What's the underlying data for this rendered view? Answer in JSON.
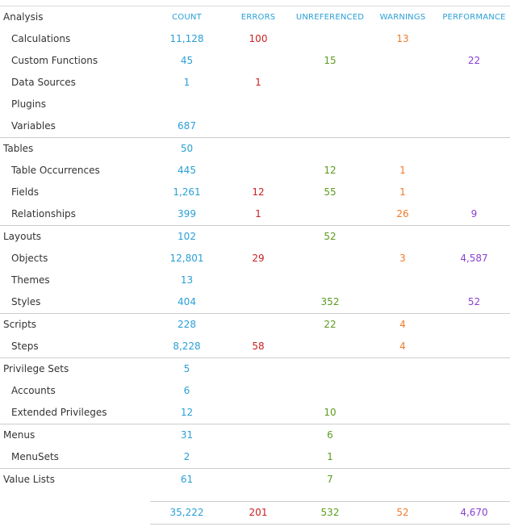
{
  "columns": {
    "count": "COUNT",
    "errors": "ERRORS",
    "unreferenced": "UNREFERENCED",
    "warnings": "WARNINGS",
    "performance": "PERFORMANCE"
  },
  "colors": {
    "label": "#333333",
    "count": "#2a9fd6",
    "errors": "#cc1f1f",
    "unreferenced": "#5b9b1f",
    "warnings": "#f07a2a",
    "performance": "#8a3fd1",
    "divider": "#cccccc"
  },
  "groups": [
    {
      "label": "Analysis",
      "values": {
        "count": "",
        "errors": "",
        "unreferenced": "",
        "warnings": "",
        "performance": ""
      },
      "is_header": true,
      "items": [
        {
          "label": "Calculations",
          "values": {
            "count": "11,128",
            "errors": "100",
            "unreferenced": "",
            "warnings": "13",
            "performance": ""
          }
        },
        {
          "label": "Custom Functions",
          "values": {
            "count": "45",
            "errors": "",
            "unreferenced": "15",
            "warnings": "",
            "performance": "22"
          }
        },
        {
          "label": "Data Sources",
          "values": {
            "count": "1",
            "errors": "1",
            "unreferenced": "",
            "warnings": "",
            "performance": ""
          }
        },
        {
          "label": "Plugins",
          "values": {
            "count": "",
            "errors": "",
            "unreferenced": "",
            "warnings": "",
            "performance": ""
          }
        },
        {
          "label": "Variables",
          "values": {
            "count": "687",
            "errors": "",
            "unreferenced": "",
            "warnings": "",
            "performance": ""
          }
        }
      ]
    },
    {
      "label": "Tables",
      "values": {
        "count": "50",
        "errors": "",
        "unreferenced": "",
        "warnings": "",
        "performance": ""
      },
      "items": [
        {
          "label": "Table Occurrences",
          "values": {
            "count": "445",
            "errors": "",
            "unreferenced": "12",
            "warnings": "1",
            "performance": ""
          }
        },
        {
          "label": "Fields",
          "values": {
            "count": "1,261",
            "errors": "12",
            "unreferenced": "55",
            "warnings": "1",
            "performance": ""
          }
        },
        {
          "label": "Relationships",
          "values": {
            "count": "399",
            "errors": "1",
            "unreferenced": "",
            "warnings": "26",
            "performance": "9"
          }
        }
      ]
    },
    {
      "label": "Layouts",
      "values": {
        "count": "102",
        "errors": "",
        "unreferenced": "52",
        "warnings": "",
        "performance": ""
      },
      "items": [
        {
          "label": "Objects",
          "values": {
            "count": "12,801",
            "errors": "29",
            "unreferenced": "",
            "warnings": "3",
            "performance": "4,587"
          }
        },
        {
          "label": "Themes",
          "values": {
            "count": "13",
            "errors": "",
            "unreferenced": "",
            "warnings": "",
            "performance": ""
          }
        },
        {
          "label": "Styles",
          "values": {
            "count": "404",
            "errors": "",
            "unreferenced": "352",
            "warnings": "",
            "performance": "52"
          }
        }
      ]
    },
    {
      "label": "Scripts",
      "values": {
        "count": "228",
        "errors": "",
        "unreferenced": "22",
        "warnings": "4",
        "performance": ""
      },
      "items": [
        {
          "label": "Steps",
          "values": {
            "count": "8,228",
            "errors": "58",
            "unreferenced": "",
            "warnings": "4",
            "performance": ""
          }
        }
      ]
    },
    {
      "label": "Privilege Sets",
      "values": {
        "count": "5",
        "errors": "",
        "unreferenced": "",
        "warnings": "",
        "performance": ""
      },
      "items": [
        {
          "label": "Accounts",
          "values": {
            "count": "6",
            "errors": "",
            "unreferenced": "",
            "warnings": "",
            "performance": ""
          }
        },
        {
          "label": "Extended Privileges",
          "values": {
            "count": "12",
            "errors": "",
            "unreferenced": "10",
            "warnings": "",
            "performance": ""
          }
        }
      ]
    },
    {
      "label": "Menus",
      "values": {
        "count": "31",
        "errors": "",
        "unreferenced": "6",
        "warnings": "",
        "performance": ""
      },
      "items": [
        {
          "label": "MenuSets",
          "values": {
            "count": "2",
            "errors": "",
            "unreferenced": "1",
            "warnings": "",
            "performance": ""
          }
        }
      ]
    },
    {
      "label": "Value Lists",
      "values": {
        "count": "61",
        "errors": "",
        "unreferenced": "7",
        "warnings": "",
        "performance": ""
      },
      "items": []
    }
  ],
  "totals": {
    "count": "35,222",
    "errors": "201",
    "unreferenced": "532",
    "warnings": "52",
    "performance": "4,670"
  }
}
